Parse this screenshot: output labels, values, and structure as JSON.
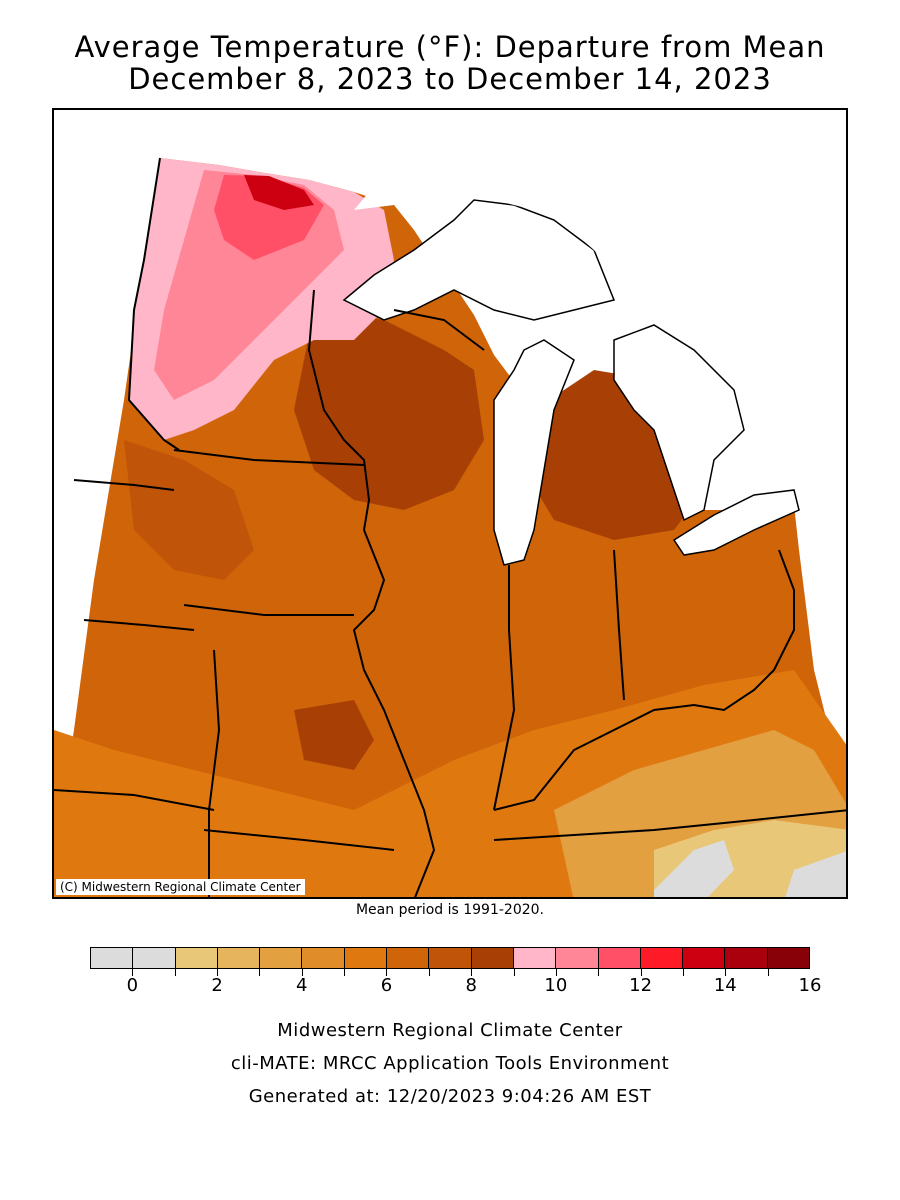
{
  "header": {
    "title_line1": "Average Temperature (°F): Departure from Mean",
    "title_line2": "December 8, 2023 to December 14, 2023"
  },
  "map": {
    "copyright": "(C) Midwestern Regional Climate Center",
    "land_color": "#c75a08",
    "water_color": "#ffffff"
  },
  "mean_note": "Mean period is 1991-2020.",
  "legend": {
    "colors": [
      "#dcdcdc",
      "#dcdcdc",
      "#e8c878",
      "#e6b45c",
      "#e2a040",
      "#e08c28",
      "#e07810",
      "#d06408",
      "#c05408",
      "#a84006",
      "#ffb6c8",
      "#ff8696",
      "#ff5068",
      "#ff1a28",
      "#cc0010",
      "#aa000e",
      "#880008"
    ],
    "ticks": [
      "0",
      "2",
      "4",
      "6",
      "8",
      "10",
      "12",
      "14",
      "16"
    ]
  },
  "footer": {
    "line1": "Midwestern Regional Climate Center",
    "line2": "cli-MATE: MRCC Application Tools Environment",
    "line3": "Generated at: 12/20/2023 9:04:26 AM EST"
  }
}
